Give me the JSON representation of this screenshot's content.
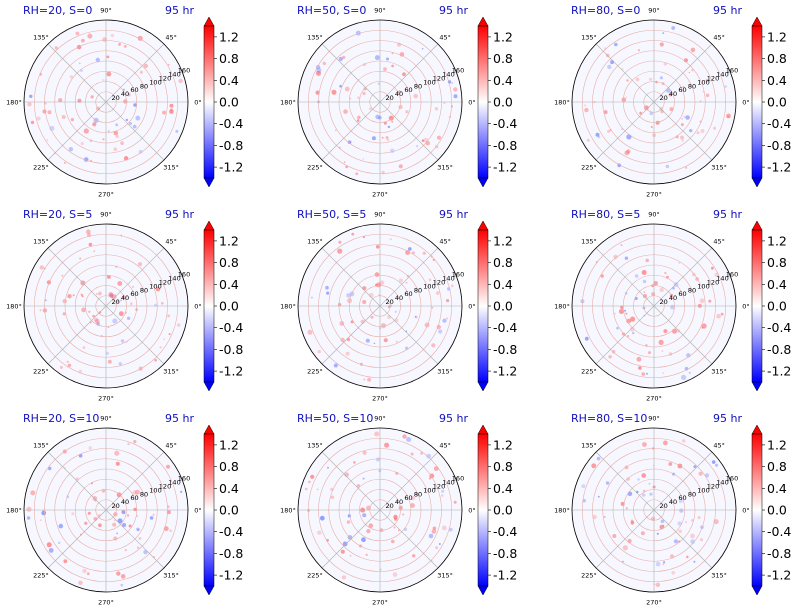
{
  "figure": {
    "colormap": "bwr",
    "colors": {
      "title": "#1010c0",
      "positive": "#ff0000",
      "negative": "#0000ff",
      "grid": "#b0b0b0"
    }
  },
  "chart_data": [
    {
      "type": "heatmap",
      "projection": "polar",
      "title": "RH=20, S=0",
      "time_label": "95 hr"
    },
    {
      "type": "heatmap",
      "projection": "polar",
      "title": "RH=50, S=0",
      "time_label": "95 hr"
    },
    {
      "type": "heatmap",
      "projection": "polar",
      "title": "RH=80, S=0",
      "time_label": "95 hr"
    },
    {
      "type": "heatmap",
      "projection": "polar",
      "title": "RH=20, S=5",
      "time_label": "95 hr"
    },
    {
      "type": "heatmap",
      "projection": "polar",
      "title": "RH=50, S=5",
      "time_label": "95 hr"
    },
    {
      "type": "heatmap",
      "projection": "polar",
      "title": "RH=80, S=5",
      "time_label": "95 hr"
    },
    {
      "type": "heatmap",
      "projection": "polar",
      "title": "RH=20, S=10",
      "time_label": "95 hr"
    },
    {
      "type": "heatmap",
      "projection": "polar",
      "title": "RH=50, S=10",
      "time_label": "95 hr"
    },
    {
      "type": "heatmap",
      "projection": "polar",
      "title": "RH=80, S=10",
      "time_label": "95 hr"
    }
  ],
  "shared_axes": {
    "angle_ticks": [
      "90°",
      "45°",
      "0°",
      "315°",
      "270°",
      "225°",
      "180°",
      "135°"
    ],
    "radial_ticks": [
      "20",
      "40",
      "60",
      "80",
      "100",
      "120",
      "140",
      "160"
    ],
    "rlim": [
      0,
      160
    ],
    "grid": true
  },
  "colorbar": {
    "ticks": [
      "1.2",
      "0.8",
      "0.4",
      "0.0",
      "-0.4",
      "-0.8",
      "-1.2"
    ],
    "tick_values": [
      1.2,
      0.8,
      0.4,
      0.0,
      -0.4,
      -0.8,
      -1.2
    ],
    "range": [
      -1.4,
      1.4
    ],
    "extend": "both"
  }
}
